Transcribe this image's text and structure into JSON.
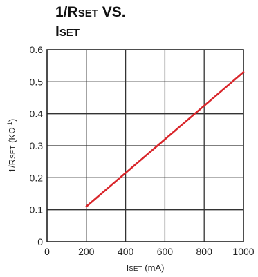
{
  "chart_data": {
    "type": "line",
    "title_parts": [
      {
        "main": "1/R",
        "sub": "SET",
        "rest": " VS."
      },
      {
        "main": "I",
        "sub": "SET",
        "rest": ""
      }
    ],
    "xlabel_main": "I",
    "xlabel_sub": "SET",
    "xlabel_rest": " (mA)",
    "ylabel_main": "1/R",
    "ylabel_sub": "SET",
    "ylabel_rest": " (KΩ",
    "ylabel_sup": "-1",
    "ylabel_close": ")",
    "xlim": [
      0,
      1000
    ],
    "ylim": [
      0,
      0.6
    ],
    "xticks": [
      0,
      200,
      400,
      600,
      800,
      1000
    ],
    "xtick_labels": [
      "0",
      "200",
      "400",
      "600",
      "800",
      "1000"
    ],
    "yticks": [
      0,
      0.1,
      0.2,
      0.3,
      0.4,
      0.5,
      0.6
    ],
    "ytick_labels": [
      "0",
      "0.1",
      "0.2",
      "0.3",
      "0.4",
      "0.5",
      "0.6"
    ],
    "grid": true,
    "series": [
      {
        "color": "#d9262b",
        "x": [
          200,
          1000
        ],
        "y": [
          0.11,
          0.53
        ]
      }
    ]
  }
}
